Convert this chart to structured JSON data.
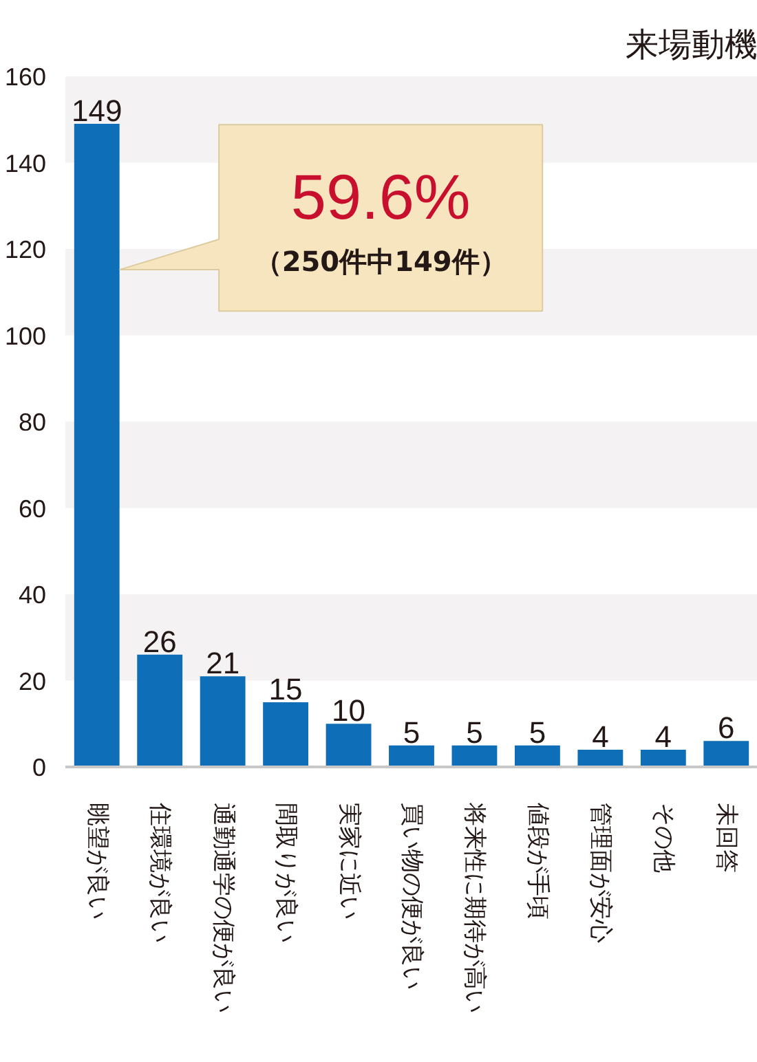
{
  "chart_data": {
    "type": "bar",
    "title": "来場動機",
    "categories": [
      "眺望が良い",
      "住環境が良い",
      "通勤通学の便が良い",
      "間取りが良い",
      "実家に近い",
      "買い物の便が良い",
      "将来性に期待が高い",
      "値段が手頃",
      "管理面が安心",
      "その他",
      "未回答"
    ],
    "values": [
      149,
      26,
      21,
      15,
      10,
      5,
      5,
      5,
      4,
      4,
      6
    ],
    "color": "#0e6eb8",
    "ylim": [
      0,
      160
    ],
    "yticks": [
      0,
      20,
      40,
      60,
      80,
      100,
      120,
      140,
      160
    ],
    "data_labels": true,
    "annotations": [
      "59.6%",
      "（250件中149件）"
    ]
  }
}
